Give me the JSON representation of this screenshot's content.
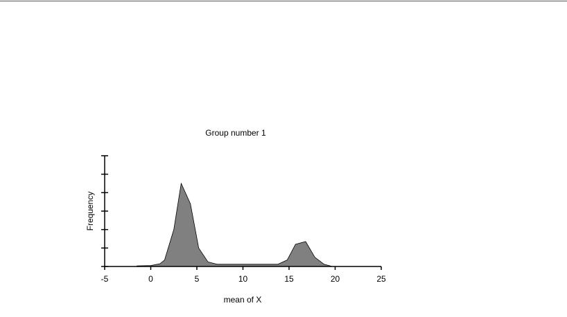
{
  "chart_data": {
    "type": "area",
    "title": "Group number 1",
    "xlabel": "mean of X",
    "ylabel": "Frequency",
    "x": [
      -1.5,
      0,
      1,
      1.5,
      2.5,
      3.3,
      4.3,
      5.2,
      6.2,
      7.2,
      8,
      10,
      12,
      13.8,
      14.8,
      15.7,
      16.8,
      17.8,
      18.8,
      19.7
    ],
    "values": [
      0.03,
      0.05,
      0.15,
      0.35,
      2.0,
      4.5,
      3.4,
      1.0,
      0.25,
      0.12,
      0.12,
      0.12,
      0.12,
      0.12,
      0.35,
      1.2,
      1.35,
      0.5,
      0.12,
      0
    ],
    "color": "#808080",
    "xlim": [
      -5,
      25
    ],
    "xticks": [
      -5,
      0,
      5,
      10,
      15,
      20,
      25
    ],
    "ylim": [
      0,
      6
    ],
    "yticks": [
      0,
      1,
      2,
      3,
      4,
      5,
      6
    ]
  }
}
